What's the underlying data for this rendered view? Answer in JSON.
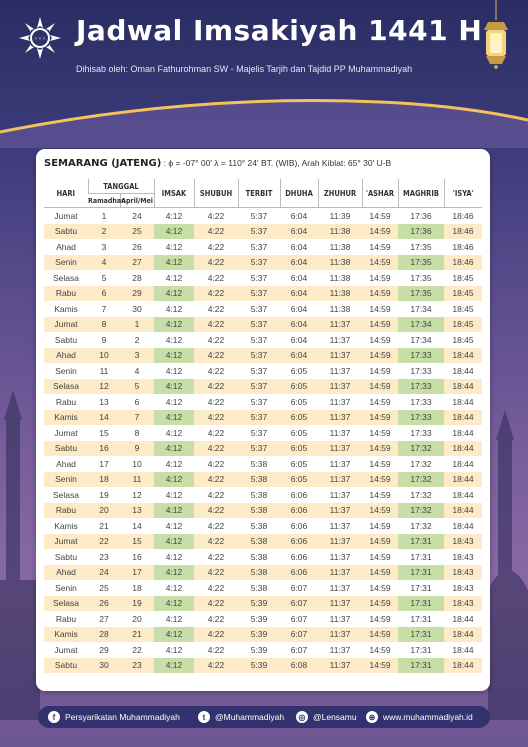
{
  "header": {
    "title": "Jadwal Imsakiyah 1441 H",
    "subtitle": "Dihisab oleh: Oman Fathurohman SW - Majelis Tarjih dan Tajdid PP Muhammadiyah"
  },
  "location": {
    "city": "SEMARANG (JATENG)",
    "info": ": ϕ = -07° 00'  λ = 110° 24'  BT. (WIB), Arah Kiblat: 65° 30'  U-B"
  },
  "columns": {
    "hari": "HARI",
    "tanggal": "TANGGAL",
    "ramadhan": "Ramadhan",
    "aprilmei": "April/Mei",
    "imsak": "IMSAK",
    "shubuh": "SHUBUH",
    "terbit": "TERBIT",
    "dhuha": "DHUHA",
    "zhuhur": "ZHUHUR",
    "ashar": "'ASHAR",
    "maghrib": "MAGHRIB",
    "isya": "'ISYA'"
  },
  "rows": [
    [
      "Jumat",
      "1",
      "24",
      "4:12",
      "4:22",
      "5:37",
      "6:04",
      "11:39",
      "14:59",
      "17:36",
      "18:46"
    ],
    [
      "Sabtu",
      "2",
      "25",
      "4:12",
      "4:22",
      "5:37",
      "6:04",
      "11:38",
      "14:59",
      "17:36",
      "18:46"
    ],
    [
      "Ahad",
      "3",
      "26",
      "4:12",
      "4:22",
      "5:37",
      "6:04",
      "11:38",
      "14:59",
      "17:35",
      "18:46"
    ],
    [
      "Senin",
      "4",
      "27",
      "4:12",
      "4:22",
      "5:37",
      "6:04",
      "11:38",
      "14:59",
      "17:35",
      "18:46"
    ],
    [
      "Selasa",
      "5",
      "28",
      "4:12",
      "4:22",
      "5:37",
      "6:04",
      "11:38",
      "14:59",
      "17:35",
      "18:45"
    ],
    [
      "Rabu",
      "6",
      "29",
      "4:12",
      "4:22",
      "5:37",
      "6:04",
      "11:38",
      "14:59",
      "17:35",
      "18:45"
    ],
    [
      "Kamis",
      "7",
      "30",
      "4:12",
      "4:22",
      "5:37",
      "6:04",
      "11:38",
      "14:59",
      "17:34",
      "18:45"
    ],
    [
      "Jumat",
      "8",
      "1",
      "4:12",
      "4:22",
      "5:37",
      "6:04",
      "11:37",
      "14:59",
      "17:34",
      "18:45"
    ],
    [
      "Sabtu",
      "9",
      "2",
      "4:12",
      "4:22",
      "5:37",
      "6:04",
      "11:37",
      "14:59",
      "17:34",
      "18:45"
    ],
    [
      "Ahad",
      "10",
      "3",
      "4:12",
      "4:22",
      "5:37",
      "6:04",
      "11:37",
      "14:59",
      "17:33",
      "18:44"
    ],
    [
      "Senin",
      "11",
      "4",
      "4:12",
      "4:22",
      "5:37",
      "6:05",
      "11:37",
      "14:59",
      "17:33",
      "18:44"
    ],
    [
      "Selasa",
      "12",
      "5",
      "4:12",
      "4:22",
      "5:37",
      "6:05",
      "11:37",
      "14:59",
      "17:33",
      "18:44"
    ],
    [
      "Rabu",
      "13",
      "6",
      "4:12",
      "4:22",
      "5:37",
      "6:05",
      "11:37",
      "14:59",
      "17:33",
      "18:44"
    ],
    [
      "Kamis",
      "14",
      "7",
      "4:12",
      "4:22",
      "5:37",
      "6:05",
      "11:37",
      "14:59",
      "17:33",
      "18:44"
    ],
    [
      "Jumat",
      "15",
      "8",
      "4:12",
      "4:22",
      "5:37",
      "6:05",
      "11:37",
      "14:59",
      "17:33",
      "18:44"
    ],
    [
      "Sabtu",
      "16",
      "9",
      "4:12",
      "4:22",
      "5:37",
      "6:05",
      "11:37",
      "14:59",
      "17:32",
      "18:44"
    ],
    [
      "Ahad",
      "17",
      "10",
      "4:12",
      "4:22",
      "5:38",
      "6:05",
      "11:37",
      "14:59",
      "17:32",
      "18:44"
    ],
    [
      "Senin",
      "18",
      "11",
      "4:12",
      "4:22",
      "5:38",
      "6:05",
      "11:37",
      "14:59",
      "17:32",
      "18:44"
    ],
    [
      "Selasa",
      "19",
      "12",
      "4:12",
      "4:22",
      "5:38",
      "6:06",
      "11:37",
      "14:59",
      "17:32",
      "18:44"
    ],
    [
      "Rabu",
      "20",
      "13",
      "4:12",
      "4:22",
      "5:38",
      "6:06",
      "11:37",
      "14:59",
      "17:32",
      "18:44"
    ],
    [
      "Kamis",
      "21",
      "14",
      "4:12",
      "4:22",
      "5:38",
      "6:06",
      "11:37",
      "14:59",
      "17:32",
      "18:44"
    ],
    [
      "Jumat",
      "22",
      "15",
      "4:12",
      "4:22",
      "5:38",
      "6:06",
      "11:37",
      "14:59",
      "17:31",
      "18:43"
    ],
    [
      "Sabtu",
      "23",
      "16",
      "4:12",
      "4:22",
      "5:38",
      "6:06",
      "11:37",
      "14:59",
      "17:31",
      "18:43"
    ],
    [
      "Ahad",
      "24",
      "17",
      "4:12",
      "4:22",
      "5:38",
      "6:06",
      "11:37",
      "14:59",
      "17:31",
      "18:43"
    ],
    [
      "Senin",
      "25",
      "18",
      "4:12",
      "4:22",
      "5:38",
      "6:07",
      "11:37",
      "14:59",
      "17:31",
      "18:43"
    ],
    [
      "Selasa",
      "26",
      "19",
      "4:12",
      "4:22",
      "5:39",
      "6:07",
      "11:37",
      "14:59",
      "17:31",
      "18:43"
    ],
    [
      "Rabu",
      "27",
      "20",
      "4:12",
      "4:22",
      "5:39",
      "6:07",
      "11:37",
      "14:59",
      "17:31",
      "18:44"
    ],
    [
      "Kamis",
      "28",
      "21",
      "4:12",
      "4:22",
      "5:39",
      "6:07",
      "11:37",
      "14:59",
      "17:31",
      "18:44"
    ],
    [
      "Jumat",
      "29",
      "22",
      "4:12",
      "4:22",
      "5:39",
      "6:07",
      "11:37",
      "14:59",
      "17:31",
      "18:44"
    ],
    [
      "Sabtu",
      "30",
      "23",
      "4:12",
      "4:22",
      "5:39",
      "6:08",
      "11:37",
      "14:59",
      "17:31",
      "18:44"
    ]
  ],
  "footer": {
    "facebook": "Persyarikatan Muhammadiyah",
    "twitter": "@Muhammadiyah",
    "instagram": "@Lensamu",
    "website": "www.muhammadiyah.id"
  },
  "colors": {
    "row_alt": "#fdebc8",
    "highlight": "#c7dfa7",
    "footer_bg": "#34326e"
  }
}
